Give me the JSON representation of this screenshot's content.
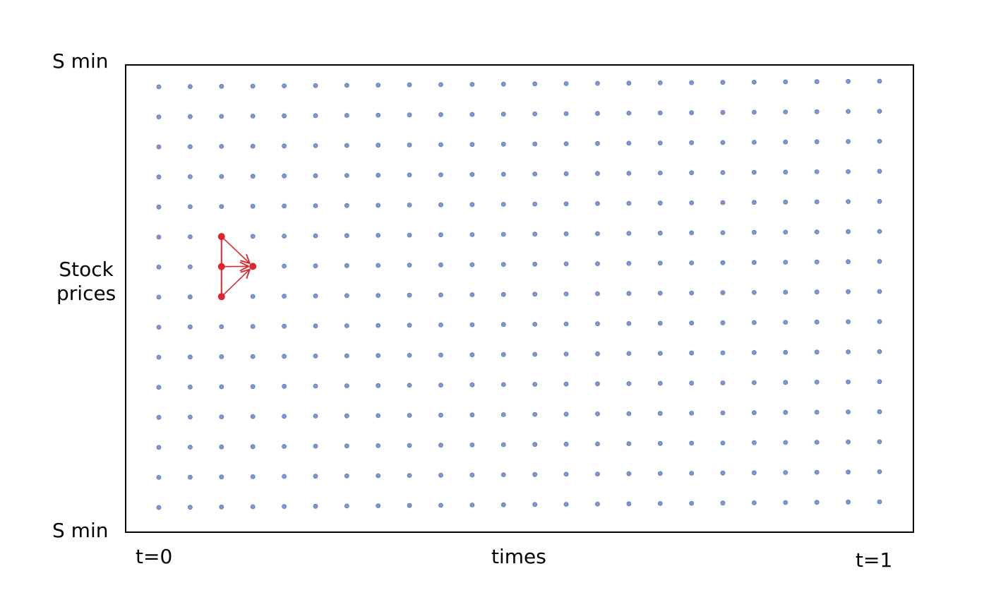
{
  "labels": {
    "y_top": "S min",
    "y_bottom": "S min",
    "y_axis_line1": "Stock",
    "y_axis_line2": "prices",
    "x_start": "t=0",
    "x_axis": "times",
    "x_end": "t=1"
  },
  "grid": {
    "columns": 24,
    "rows": 15,
    "dot_color": "#7f98cc",
    "dot_stroke": "#5b78b5"
  },
  "stencil": {
    "color": "#d9282f",
    "source_column": 2,
    "target_column": 3,
    "center_row": 6,
    "rows": [
      5,
      6,
      7
    ]
  }
}
